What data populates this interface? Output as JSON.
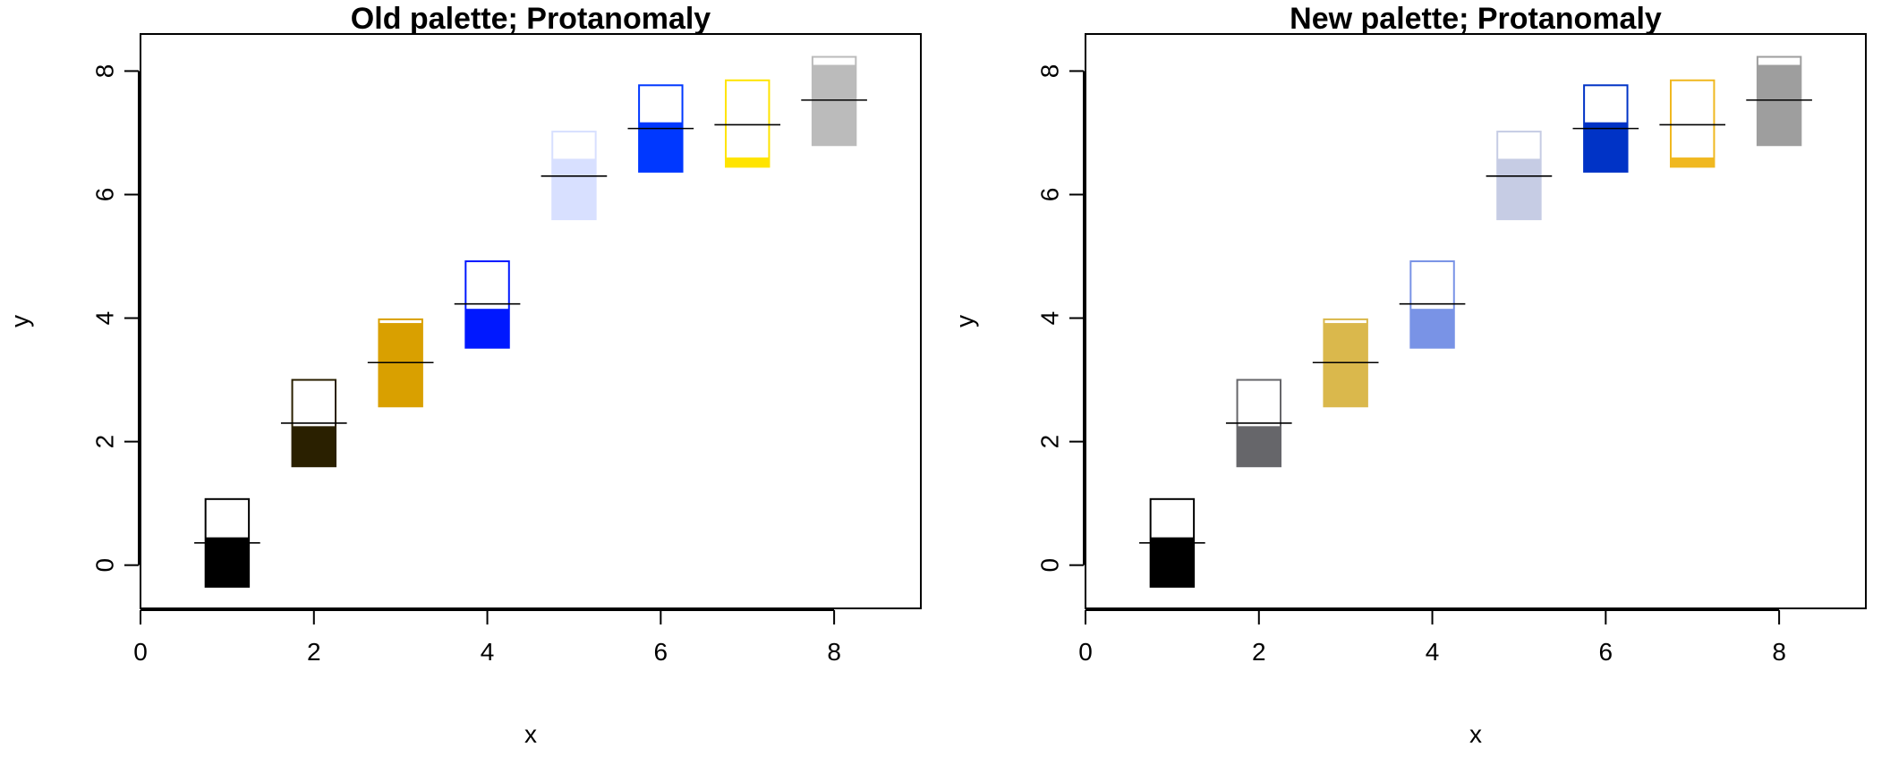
{
  "chart_data": [
    {
      "type": "bar",
      "title": "Old palette; Protanomaly",
      "xlabel": "x",
      "ylabel": "y",
      "xlim": [
        0,
        9
      ],
      "ylim": [
        -0.7,
        8.6
      ],
      "x_ticks": [
        "0",
        "2",
        "4",
        "6",
        "8"
      ],
      "y_ticks": [
        "0",
        "2",
        "4",
        "6",
        "8"
      ],
      "grid": false,
      "legend": "none",
      "boxes": [
        {
          "x": 1,
          "bottom": -0.35,
          "split": 0.45,
          "top": 1.07,
          "mark": 0.36,
          "color": "#000000"
        },
        {
          "x": 2,
          "bottom": 1.6,
          "split": 2.25,
          "top": 3.0,
          "mark": 2.3,
          "color": "#2a2000"
        },
        {
          "x": 3,
          "bottom": 2.57,
          "split": 3.92,
          "top": 3.98,
          "mark": 3.28,
          "color": "#d9a000"
        },
        {
          "x": 4,
          "bottom": 3.52,
          "split": 4.15,
          "top": 4.92,
          "mark": 4.23,
          "color": "#0018ff"
        },
        {
          "x": 5,
          "bottom": 5.6,
          "split": 6.58,
          "top": 7.02,
          "mark": 6.3,
          "color": "#d8e0ff"
        },
        {
          "x": 6,
          "bottom": 6.37,
          "split": 7.17,
          "top": 7.77,
          "mark": 7.07,
          "color": "#0038ff"
        },
        {
          "x": 7,
          "bottom": 6.45,
          "split": 6.6,
          "top": 7.85,
          "mark": 7.13,
          "color": "#ffe400"
        },
        {
          "x": 8,
          "bottom": 6.8,
          "split": 8.1,
          "top": 8.23,
          "mark": 7.53,
          "color": "#bbbbbb"
        }
      ]
    },
    {
      "type": "bar",
      "title": "New palette; Protanomaly",
      "xlabel": "x",
      "ylabel": "y",
      "xlim": [
        0,
        9
      ],
      "ylim": [
        -0.7,
        8.6
      ],
      "x_ticks": [
        "0",
        "2",
        "4",
        "6",
        "8"
      ],
      "y_ticks": [
        "0",
        "2",
        "4",
        "6",
        "8"
      ],
      "grid": false,
      "legend": "none",
      "boxes": [
        {
          "x": 1,
          "bottom": -0.35,
          "split": 0.45,
          "top": 1.07,
          "mark": 0.36,
          "color": "#000000"
        },
        {
          "x": 2,
          "bottom": 1.6,
          "split": 2.25,
          "top": 3.0,
          "mark": 2.3,
          "color": "#66666a"
        },
        {
          "x": 3,
          "bottom": 2.57,
          "split": 3.92,
          "top": 3.98,
          "mark": 3.28,
          "color": "#dab84c"
        },
        {
          "x": 4,
          "bottom": 3.52,
          "split": 4.15,
          "top": 4.92,
          "mark": 4.23,
          "color": "#7993e6"
        },
        {
          "x": 5,
          "bottom": 5.6,
          "split": 6.58,
          "top": 7.02,
          "mark": 6.3,
          "color": "#c6cce4"
        },
        {
          "x": 6,
          "bottom": 6.37,
          "split": 7.17,
          "top": 7.77,
          "mark": 7.07,
          "color": "#0033c6"
        },
        {
          "x": 7,
          "bottom": 6.45,
          "split": 6.6,
          "top": 7.85,
          "mark": 7.13,
          "color": "#f0b820"
        },
        {
          "x": 8,
          "bottom": 6.8,
          "split": 8.1,
          "top": 8.23,
          "mark": 7.53,
          "color": "#9e9e9e"
        }
      ]
    }
  ]
}
